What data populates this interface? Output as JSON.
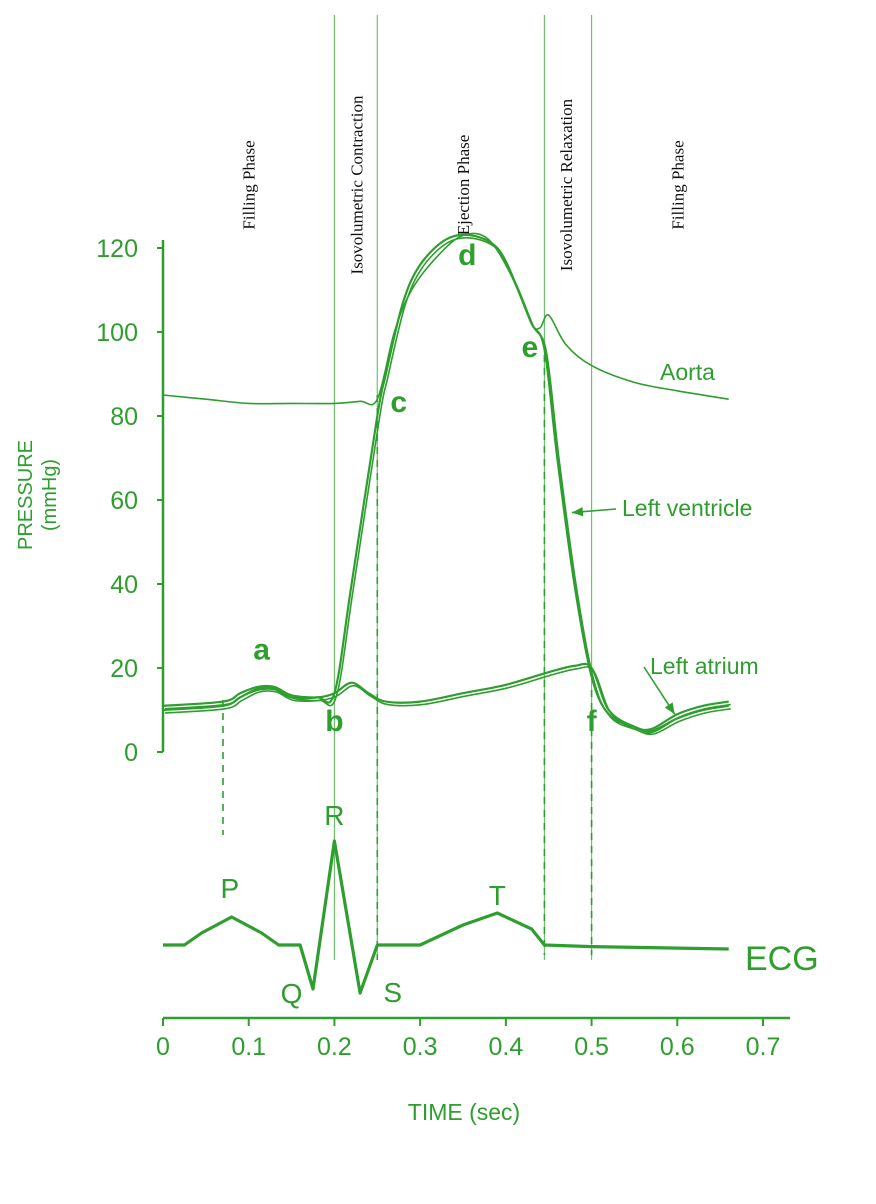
{
  "colors": {
    "curve": "#2e9e2e",
    "axis": "#2e9e2e",
    "phase_text": "#111111",
    "phase_line": "#6fc16f"
  },
  "chart_data": {
    "type": "line",
    "xlabel": "TIME (sec)",
    "ylabel": "PRESSURE",
    "ylabel_unit": "(mmHg)",
    "xlim": [
      0,
      0.7
    ],
    "ylim": [
      0,
      120
    ],
    "x_ticks": [
      "0",
      "0.1",
      "0.2",
      "0.3",
      "0.4",
      "0.5",
      "0.6",
      "0.7"
    ],
    "y_ticks": [
      "0",
      "20",
      "40",
      "60",
      "80",
      "100",
      "120"
    ],
    "phases": [
      {
        "label": "Filling Phase",
        "x": 0.1
      },
      {
        "label": "Isovolumetric Contraction",
        "x": 0.226
      },
      {
        "label": "Ejection Phase",
        "x": 0.35
      },
      {
        "label": "Isovolumetric Relaxation",
        "x": 0.47
      },
      {
        "label": "Filling Phase",
        "x": 0.6
      }
    ],
    "phase_boundaries": [
      0.2,
      0.25,
      0.445,
      0.5
    ],
    "series": [
      {
        "name": "Aorta",
        "points": [
          [
            0,
            85
          ],
          [
            0.05,
            84
          ],
          [
            0.1,
            83
          ],
          [
            0.15,
            83
          ],
          [
            0.2,
            83
          ],
          [
            0.23,
            83.5
          ],
          [
            0.25,
            84
          ],
          [
            0.27,
            100
          ],
          [
            0.29,
            110
          ],
          [
            0.32,
            118
          ],
          [
            0.35,
            123
          ],
          [
            0.38,
            122
          ],
          [
            0.41,
            112
          ],
          [
            0.43,
            102
          ],
          [
            0.44,
            101
          ],
          [
            0.45,
            104
          ],
          [
            0.47,
            97
          ],
          [
            0.5,
            92
          ],
          [
            0.55,
            88
          ],
          [
            0.6,
            86
          ],
          [
            0.66,
            84
          ]
        ]
      },
      {
        "name": "Left ventricle",
        "points": [
          [
            0,
            10
          ],
          [
            0.07,
            11
          ],
          [
            0.09,
            13
          ],
          [
            0.11,
            15
          ],
          [
            0.13,
            15
          ],
          [
            0.15,
            13
          ],
          [
            0.18,
            13
          ],
          [
            0.2,
            14
          ],
          [
            0.22,
            40
          ],
          [
            0.25,
            80
          ],
          [
            0.26,
            90
          ],
          [
            0.28,
            107
          ],
          [
            0.3,
            116
          ],
          [
            0.33,
            122
          ],
          [
            0.36,
            123
          ],
          [
            0.39,
            120
          ],
          [
            0.41,
            112
          ],
          [
            0.43,
            102
          ],
          [
            0.445,
            96
          ],
          [
            0.46,
            70
          ],
          [
            0.48,
            40
          ],
          [
            0.5,
            18
          ],
          [
            0.52,
            9
          ],
          [
            0.55,
            6
          ],
          [
            0.57,
            5
          ],
          [
            0.6,
            8
          ],
          [
            0.63,
            10
          ],
          [
            0.66,
            11
          ]
        ]
      },
      {
        "name": "Left atrium",
        "points": [
          [
            0,
            11
          ],
          [
            0.07,
            12
          ],
          [
            0.09,
            14
          ],
          [
            0.11,
            15.5
          ],
          [
            0.13,
            15.5
          ],
          [
            0.15,
            13.5
          ],
          [
            0.18,
            13
          ],
          [
            0.2,
            14
          ],
          [
            0.22,
            16.5
          ],
          [
            0.24,
            14
          ],
          [
            0.26,
            12
          ],
          [
            0.3,
            12
          ],
          [
            0.35,
            14
          ],
          [
            0.4,
            16
          ],
          [
            0.45,
            19
          ],
          [
            0.48,
            20.5
          ],
          [
            0.5,
            20
          ],
          [
            0.52,
            10
          ],
          [
            0.55,
            6
          ],
          [
            0.57,
            5.5
          ],
          [
            0.6,
            9
          ],
          [
            0.63,
            11
          ],
          [
            0.66,
            12
          ]
        ]
      }
    ],
    "ecg": {
      "name": "ECG",
      "baseline_points": [
        [
          0,
          0
        ],
        [
          0.025,
          0
        ],
        [
          0.045,
          0.15
        ],
        [
          0.08,
          0.35
        ],
        [
          0.115,
          0.15
        ],
        [
          0.135,
          0
        ],
        [
          0.16,
          0
        ],
        [
          0.175,
          -0.55
        ],
        [
          0.2,
          1.3
        ],
        [
          0.23,
          -0.6
        ],
        [
          0.25,
          0
        ],
        [
          0.3,
          0
        ],
        [
          0.35,
          0.25
        ],
        [
          0.39,
          0.4
        ],
        [
          0.43,
          0.2
        ],
        [
          0.445,
          0
        ],
        [
          0.5,
          -0.02
        ],
        [
          0.66,
          -0.05
        ]
      ],
      "wave_labels": [
        "P",
        "Q",
        "R",
        "S",
        "T"
      ]
    },
    "point_labels": [
      {
        "label": "a",
        "x": 0.115,
        "y": 22
      },
      {
        "label": "b",
        "x": 0.2,
        "y": 5
      },
      {
        "label": "c",
        "x": 0.275,
        "y": 81
      },
      {
        "label": "d",
        "x": 0.355,
        "y": 116
      },
      {
        "label": "e",
        "x": 0.428,
        "y": 94
      },
      {
        "label": "f",
        "x": 0.5,
        "y": 5
      }
    ],
    "annotations": [
      {
        "label": "Aorta",
        "target": [
          0.53,
          88
        ]
      },
      {
        "label": "Left ventricle",
        "target": [
          0.47,
          57
        ]
      },
      {
        "label": "Left atrium",
        "target": [
          0.59,
          9
        ]
      }
    ],
    "grid": false,
    "legend": "none"
  }
}
